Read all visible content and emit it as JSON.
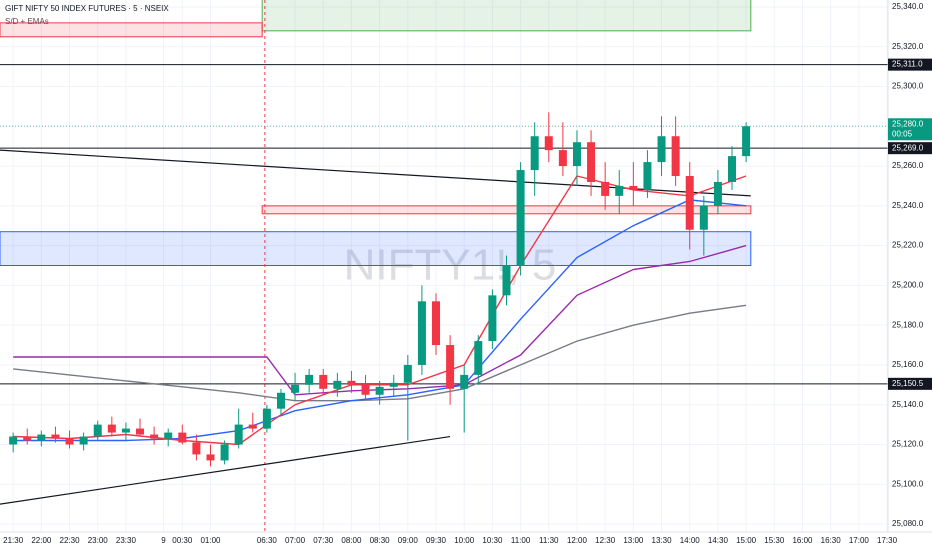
{
  "chart_data": {
    "type": "candlestick",
    "title": "GIFT NIFTY 50 INDEX FUTURES · 5 · NSEIX",
    "subtitle": "S/D + EMAs",
    "watermark": "NIFTY1!, 5",
    "up_color": "#089981",
    "down_color": "#f23645",
    "xlim": [
      -2.8,
      186.2
    ],
    "ylim": [
      25076,
      25343.5
    ],
    "yticks": [
      {
        "value": 25080,
        "label": "25,080.0"
      },
      {
        "value": 25100,
        "label": "25,100.0"
      },
      {
        "value": 25120,
        "label": "25,120.0"
      },
      {
        "value": 25140,
        "label": "25,140.0"
      },
      {
        "value": 25160,
        "label": "25,160.0"
      },
      {
        "value": 25180,
        "label": "25,180.0"
      },
      {
        "value": 25200,
        "label": "25,200.0"
      },
      {
        "value": 25220,
        "label": "25,220.0"
      },
      {
        "value": 25240,
        "label": "25,240.0"
      },
      {
        "value": 25260,
        "label": "25,260.0"
      },
      {
        "value": 25280,
        "label": "25,280.0"
      },
      {
        "value": 25300,
        "label": "25,300.0"
      },
      {
        "value": 25320,
        "label": "25,320.0"
      },
      {
        "value": 25340,
        "label": "25,340.0"
      }
    ],
    "xticks": [
      {
        "value": 0,
        "label": "21:30"
      },
      {
        "value": 6,
        "label": "22:00"
      },
      {
        "value": 12,
        "label": "22:30"
      },
      {
        "value": 18,
        "label": "23:00"
      },
      {
        "value": 24,
        "label": "23:30"
      },
      {
        "value": 32,
        "label": "9"
      },
      {
        "value": 36,
        "label": "00:30"
      },
      {
        "value": 42,
        "label": "01:00"
      },
      {
        "value": 54,
        "label": "06:30"
      },
      {
        "value": 60,
        "label": "07:00"
      },
      {
        "value": 66,
        "label": "07:30"
      },
      {
        "value": 72,
        "label": "08:00"
      },
      {
        "value": 78,
        "label": "08:30"
      },
      {
        "value": 84,
        "label": "09:00"
      },
      {
        "value": 90,
        "label": "09:30"
      },
      {
        "value": 96,
        "label": "10:00"
      },
      {
        "value": 102,
        "label": "10:30"
      },
      {
        "value": 108,
        "label": "11:00"
      },
      {
        "value": 114,
        "label": "11:30"
      },
      {
        "value": 120,
        "label": "12:00"
      },
      {
        "value": 126,
        "label": "12:30"
      },
      {
        "value": 132,
        "label": "13:00"
      },
      {
        "value": 138,
        "label": "13:30"
      },
      {
        "value": 144,
        "label": "14:00"
      },
      {
        "value": 150,
        "label": "14:30"
      },
      {
        "value": 156,
        "label": "15:00"
      },
      {
        "value": 162,
        "label": "15:30"
      },
      {
        "value": 168,
        "label": "16:00"
      },
      {
        "value": 174,
        "label": "16:30"
      },
      {
        "value": 180,
        "label": "17:00"
      },
      {
        "value": 186,
        "label": "17:30"
      }
    ],
    "x": [
      0,
      3,
      6,
      9,
      12,
      15,
      18,
      21,
      24,
      27,
      30,
      33,
      36,
      39,
      42,
      45,
      48,
      51,
      54,
      57,
      60,
      63,
      66,
      69,
      72,
      75,
      78,
      81,
      84,
      87,
      90,
      93,
      96,
      99,
      102,
      105,
      108,
      111,
      114,
      117,
      120,
      123,
      126,
      129,
      132,
      135,
      138,
      141,
      144,
      147,
      150,
      153,
      156
    ],
    "open": [
      25120,
      25124,
      25122,
      25125,
      25123,
      25120,
      25124,
      25130,
      25126,
      25128,
      25125,
      25123,
      25126,
      25121,
      25115,
      25112,
      25120,
      25130,
      25128,
      25138,
      25146,
      25150,
      25155,
      25148,
      25152,
      25150,
      25145,
      25149,
      25151,
      25160,
      25192,
      25170,
      25148,
      25155,
      25172,
      25195,
      25210,
      25258,
      25275,
      25268,
      25260,
      25272,
      25252,
      25245,
      25250,
      25248,
      25262,
      25275,
      25255,
      25228,
      25240,
      25252,
      25265
    ],
    "high": [
      25126,
      25128,
      25127,
      25129,
      25127,
      25126,
      25132,
      25134,
      25131,
      25133,
      25129,
      25128,
      25130,
      25125,
      25120,
      25122,
      25138,
      25136,
      25140,
      25148,
      25156,
      25158,
      25158,
      25156,
      25157,
      25155,
      25152,
      25155,
      25165,
      25200,
      25196,
      25175,
      25160,
      25175,
      25198,
      25215,
      25262,
      25282,
      25287,
      25282,
      25278,
      25278,
      25262,
      25258,
      25262,
      25268,
      25285,
      25285,
      25262,
      25245,
      25258,
      25270,
      25282
    ],
    "low": [
      25116,
      25120,
      25119,
      25121,
      25118,
      25117,
      25122,
      25124,
      25122,
      25124,
      25120,
      25119,
      25120,
      25112,
      25109,
      25110,
      25118,
      25126,
      25126,
      25135,
      25142,
      25146,
      25145,
      25144,
      25146,
      25143,
      25140,
      25144,
      25122,
      25155,
      25165,
      25140,
      25126,
      25150,
      25168,
      25190,
      25205,
      25245,
      25262,
      25255,
      25250,
      25245,
      25238,
      25236,
      25240,
      25244,
      25255,
      25250,
      25218,
      25215,
      25236,
      25248,
      25262
    ],
    "close": [
      25124,
      25122,
      25125,
      25123,
      25120,
      25124,
      25130,
      25126,
      25128,
      25125,
      25123,
      25126,
      25121,
      25115,
      25112,
      25120,
      25130,
      25128,
      25138,
      25146,
      25150,
      25155,
      25148,
      25152,
      25150,
      25145,
      25149,
      25151,
      25160,
      25192,
      25170,
      25148,
      25155,
      25172,
      25195,
      25210,
      25258,
      25275,
      25268,
      25260,
      25272,
      25252,
      25245,
      25250,
      25248,
      25262,
      25275,
      25255,
      25228,
      25240,
      25252,
      25265,
      25280
    ],
    "lines": [
      {
        "color": "#787b86",
        "x": [
          0,
          12,
          24,
          36,
          48,
          60,
          72,
          84,
          96,
          108,
          120,
          132,
          144,
          156
        ],
        "values": [
          25158,
          25155,
          25152,
          25149,
          25146,
          25142,
          25142,
          25143,
          25148,
          25160,
          25172,
          25180,
          25186,
          25190
        ]
      },
      {
        "color": "#9c27b0",
        "x": [
          0,
          12,
          24,
          36,
          48,
          54,
          60,
          72,
          84,
          96,
          108,
          120,
          132,
          144,
          156
        ],
        "values": [
          25164,
          25164,
          25164,
          25164,
          25164,
          25164,
          25145,
          25147,
          25148,
          25150,
          25165,
          25195,
          25208,
          25212,
          25220
        ]
      },
      {
        "color": "#2962ff",
        "x": [
          0,
          12,
          24,
          36,
          48,
          60,
          72,
          84,
          96,
          108,
          120,
          132,
          144,
          156
        ],
        "values": [
          25122,
          25122,
          25122,
          25123,
          25127,
          25137,
          25142,
          25145,
          25150,
          25183,
          25214,
          25230,
          25243,
          25240
        ]
      },
      {
        "color": "#f23645",
        "x": [
          0,
          12,
          24,
          36,
          48,
          60,
          72,
          84,
          96,
          108,
          120,
          132,
          144,
          156
        ],
        "values": [
          25124,
          25123,
          25125,
          25122,
          25120,
          25140,
          25150,
          25150,
          25160,
          25210,
          25255,
          25248,
          25245,
          25255
        ]
      }
    ],
    "trendlines": [
      {
        "x": [
          -2.8,
          157
        ],
        "values": [
          25268,
          25245
        ]
      },
      {
        "x": [
          -2.8,
          93
        ],
        "values": [
          25090,
          25124
        ]
      }
    ],
    "zones": [
      {
        "color": "#4caf50",
        "x": [
          53,
          157
        ],
        "values": [
          25328,
          25344
        ]
      },
      {
        "color": "#f23645",
        "x": [
          -2.8,
          53
        ],
        "values": [
          25325,
          25332
        ]
      },
      {
        "color": "#f23645",
        "x": [
          53,
          157
        ],
        "values": [
          25236,
          25240
        ]
      },
      {
        "color": "#2962ff",
        "x": [
          -2.8,
          157
        ],
        "values": [
          25210,
          25227
        ]
      }
    ],
    "levels": [
      {
        "value": 25311,
        "label": "25,311.0"
      },
      {
        "value": 25269,
        "label": "25,269.0"
      },
      {
        "value": 25150.5,
        "label": "25,150.5"
      }
    ],
    "last_price": {
      "value": 25280,
      "label": "25,280.0",
      "countdown": "00:05"
    }
  }
}
